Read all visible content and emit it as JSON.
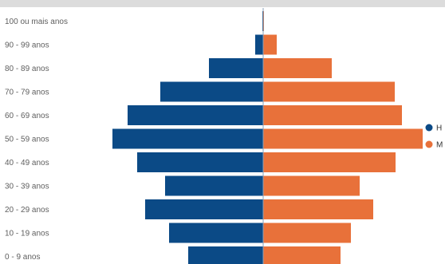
{
  "chart_data": {
    "type": "bar",
    "orientation": "horizontal",
    "layout": "population-pyramid",
    "categories": [
      "100 ou mais anos",
      "90 - 99 anos",
      "80 - 89 anos",
      "70 - 79 anos",
      "60 - 69 anos",
      "50 - 59 anos",
      "40 - 49 anos",
      "30 - 39 anos",
      "20 - 29 anos",
      "10 - 19 anos",
      "0 - 9 anos"
    ],
    "series": [
      {
        "name": "H",
        "color": "#0b4a86",
        "values": [
          1,
          10,
          68,
          129,
          170,
          189,
          158,
          123,
          148,
          118,
          94
        ]
      },
      {
        "name": "M",
        "color": "#e8713a",
        "values": [
          1,
          17,
          86,
          165,
          174,
          200,
          166,
          121,
          138,
          110,
          97
        ]
      }
    ],
    "legend": {
      "position": "right",
      "items": [
        "H",
        "M"
      ]
    },
    "grid": false
  }
}
